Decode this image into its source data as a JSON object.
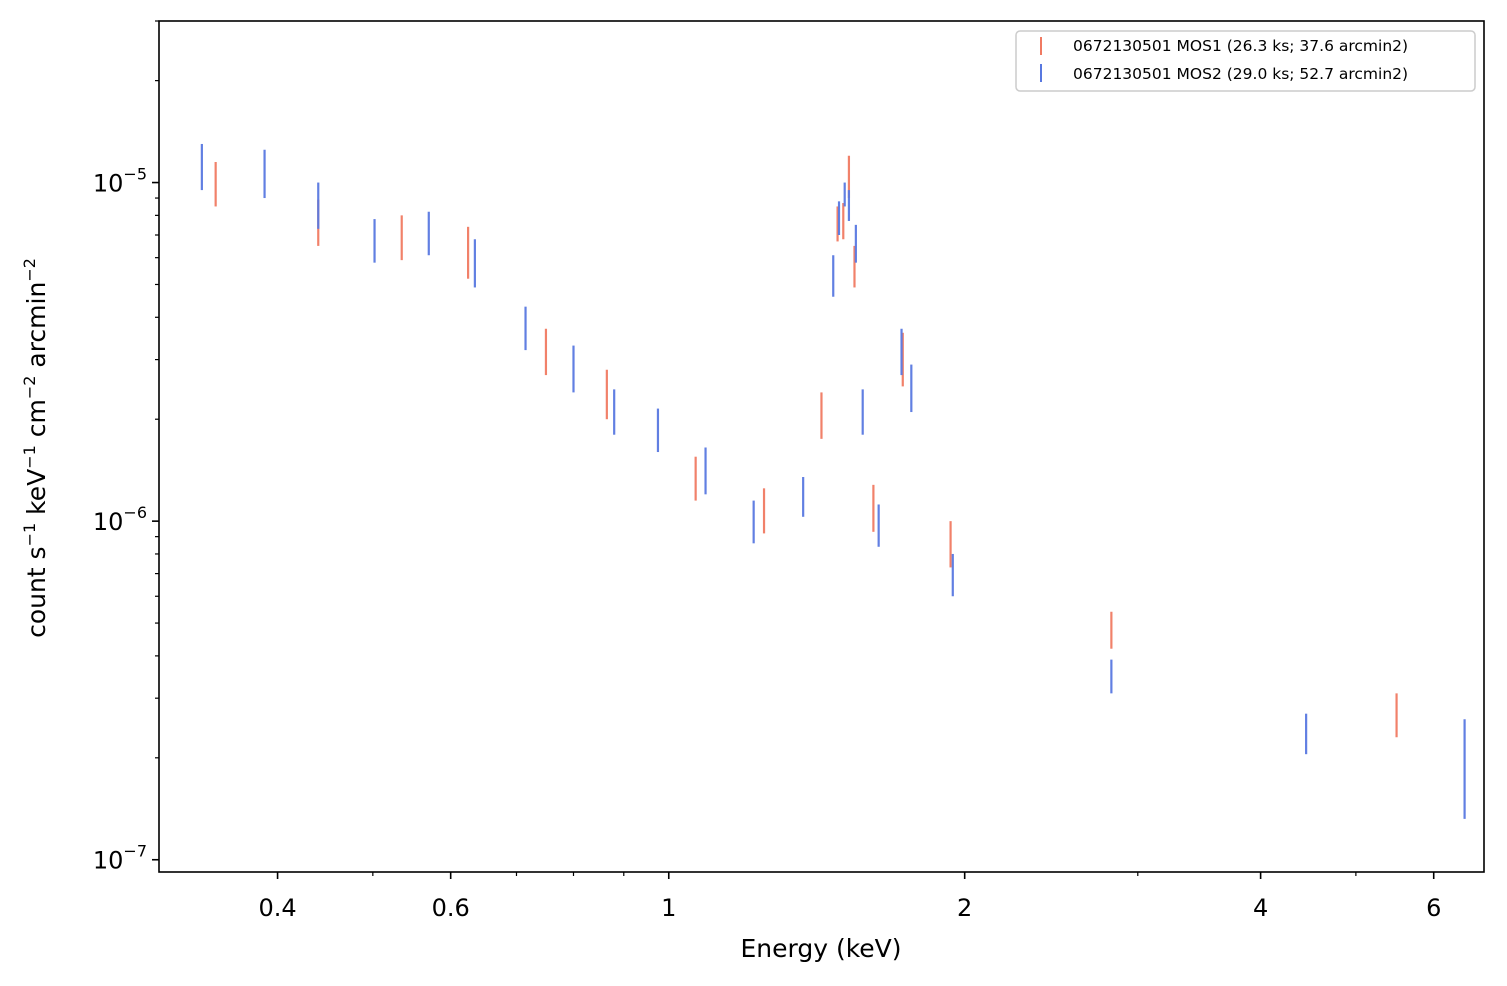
{
  "chart_data": {
    "type": "scatter",
    "title": "",
    "xlabel": "Energy (keV)",
    "ylabel_parts": {
      "base": "count s",
      "s_exp": "−1",
      "kev": " keV",
      "kev_exp": "−1",
      "cm": " cm",
      "cm_exp": "−2",
      "arcmin": " arcmin",
      "arcmin_exp": "−2"
    },
    "xscale": "log",
    "yscale": "log",
    "xlim": [
      0.303,
      6.75
    ],
    "ylim": [
      9.2e-08,
      3e-05
    ],
    "grid": false,
    "legend_position": "top-right",
    "x_major_ticks": [
      {
        "value": 0.4,
        "label": "0.4"
      },
      {
        "value": 0.6,
        "label": "0.6"
      },
      {
        "value": 1,
        "label": "1"
      },
      {
        "value": 2,
        "label": "2"
      },
      {
        "value": 4,
        "label": "4"
      },
      {
        "value": 6,
        "label": "6"
      }
    ],
    "x_minor_ticks": [
      0.3,
      0.5,
      0.7,
      0.8,
      0.9,
      3,
      5
    ],
    "y_major_ticks": [
      {
        "value": 1e-05,
        "base": "10",
        "exp": "−5"
      },
      {
        "value": 1e-06,
        "base": "10",
        "exp": "−6"
      },
      {
        "value": 1e-07,
        "base": "10",
        "exp": "−7"
      }
    ],
    "y_minor_ticks": [
      2e-05,
      3e-05,
      2e-06,
      3e-06,
      4e-06,
      5e-06,
      6e-06,
      7e-06,
      8e-06,
      9e-06,
      2e-07,
      3e-07,
      4e-07,
      5e-07,
      6e-07,
      7e-07,
      8e-07,
      9e-07
    ],
    "series": [
      {
        "name": "0672130501 MOS1 (26.3 ks; 37.6 arcmin2)",
        "color": "#f07a62",
        "points": [
          {
            "x": 0.346,
            "ylow": 8.5e-06,
            "yhigh": 1.15e-05
          },
          {
            "x": 0.44,
            "ylow": 6.5e-06,
            "yhigh": 8.9e-06
          },
          {
            "x": 0.535,
            "ylow": 5.9e-06,
            "yhigh": 8e-06
          },
          {
            "x": 0.625,
            "ylow": 5.2e-06,
            "yhigh": 7.4e-06
          },
          {
            "x": 0.75,
            "ylow": 2.7e-06,
            "yhigh": 3.7e-06
          },
          {
            "x": 0.865,
            "ylow": 2e-06,
            "yhigh": 2.8e-06
          },
          {
            "x": 1.065,
            "ylow": 1.15e-06,
            "yhigh": 1.55e-06
          },
          {
            "x": 1.25,
            "ylow": 9.2e-07,
            "yhigh": 1.25e-06
          },
          {
            "x": 1.43,
            "ylow": 1.75e-06,
            "yhigh": 2.4e-06
          },
          {
            "x": 1.485,
            "ylow": 6.7e-06,
            "yhigh": 8.5e-06
          },
          {
            "x": 1.505,
            "ylow": 6.8e-06,
            "yhigh": 8.7e-06
          },
          {
            "x": 1.525,
            "ylow": 9e-06,
            "yhigh": 1.2e-05
          },
          {
            "x": 1.545,
            "ylow": 4.9e-06,
            "yhigh": 6.5e-06
          },
          {
            "x": 1.615,
            "ylow": 9.3e-07,
            "yhigh": 1.28e-06
          },
          {
            "x": 1.73,
            "ylow": 2.5e-06,
            "yhigh": 3.6e-06
          },
          {
            "x": 1.935,
            "ylow": 7.3e-07,
            "yhigh": 1e-06
          },
          {
            "x": 2.82,
            "ylow": 4.2e-07,
            "yhigh": 5.4e-07
          },
          {
            "x": 5.5,
            "ylow": 2.3e-07,
            "yhigh": 3.1e-07
          }
        ]
      },
      {
        "name": "0672130501 MOS2 (29.0 ks; 52.7 arcmin2)",
        "color": "#5878e0",
        "points": [
          {
            "x": 0.335,
            "ylow": 9.5e-06,
            "yhigh": 1.3e-05
          },
          {
            "x": 0.388,
            "ylow": 9e-06,
            "yhigh": 1.25e-05
          },
          {
            "x": 0.44,
            "ylow": 7.3e-06,
            "yhigh": 1e-05
          },
          {
            "x": 0.502,
            "ylow": 5.8e-06,
            "yhigh": 7.8e-06
          },
          {
            "x": 0.57,
            "ylow": 6.1e-06,
            "yhigh": 8.2e-06
          },
          {
            "x": 0.635,
            "ylow": 4.9e-06,
            "yhigh": 6.8e-06
          },
          {
            "x": 0.715,
            "ylow": 3.2e-06,
            "yhigh": 4.3e-06
          },
          {
            "x": 0.8,
            "ylow": 2.4e-06,
            "yhigh": 3.3e-06
          },
          {
            "x": 0.88,
            "ylow": 1.8e-06,
            "yhigh": 2.45e-06
          },
          {
            "x": 0.975,
            "ylow": 1.6e-06,
            "yhigh": 2.15e-06
          },
          {
            "x": 1.09,
            "ylow": 1.2e-06,
            "yhigh": 1.65e-06
          },
          {
            "x": 1.22,
            "ylow": 8.6e-07,
            "yhigh": 1.15e-06
          },
          {
            "x": 1.37,
            "ylow": 1.03e-06,
            "yhigh": 1.35e-06
          },
          {
            "x": 1.47,
            "ylow": 4.6e-06,
            "yhigh": 6.1e-06
          },
          {
            "x": 1.49,
            "ylow": 7e-06,
            "yhigh": 8.8e-06
          },
          {
            "x": 1.51,
            "ylow": 8.5e-06,
            "yhigh": 1e-05
          },
          {
            "x": 1.525,
            "ylow": 7.7e-06,
            "yhigh": 9.5e-06
          },
          {
            "x": 1.55,
            "ylow": 5.8e-06,
            "yhigh": 7.5e-06
          },
          {
            "x": 1.575,
            "ylow": 1.8e-06,
            "yhigh": 2.45e-06
          },
          {
            "x": 1.635,
            "ylow": 8.4e-07,
            "yhigh": 1.12e-06
          },
          {
            "x": 1.725,
            "ylow": 2.7e-06,
            "yhigh": 3.7e-06
          },
          {
            "x": 1.765,
            "ylow": 2.1e-06,
            "yhigh": 2.9e-06
          },
          {
            "x": 1.945,
            "ylow": 6e-07,
            "yhigh": 8e-07
          },
          {
            "x": 2.82,
            "ylow": 3.1e-07,
            "yhigh": 3.9e-07
          },
          {
            "x": 4.45,
            "ylow": 2.05e-07,
            "yhigh": 2.7e-07
          },
          {
            "x": 6.45,
            "ylow": 1.32e-07,
            "yhigh": 2.6e-07
          }
        ]
      }
    ]
  }
}
